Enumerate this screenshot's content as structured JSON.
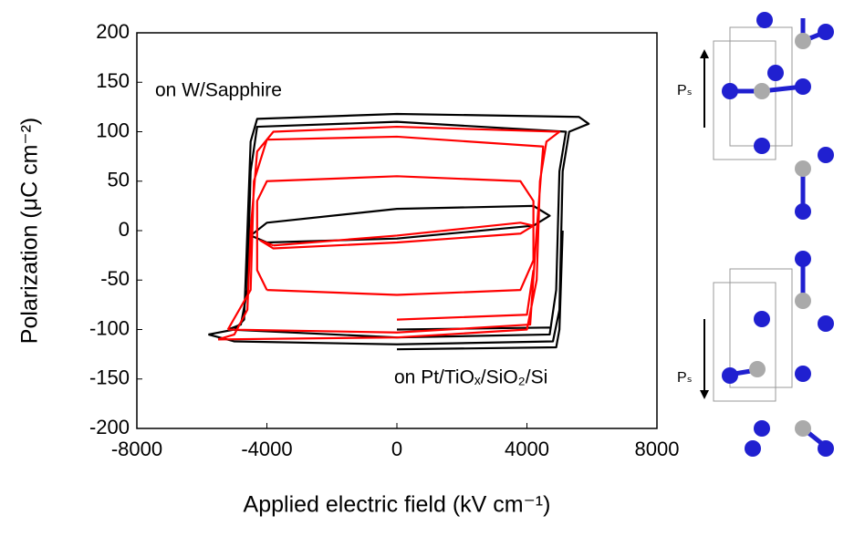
{
  "chart_data": {
    "type": "line",
    "xlabel": "Applied electric field (kV cm⁻¹)",
    "ylabel": "Polarization (μC cm⁻²)",
    "xlim": [
      -8000,
      8000
    ],
    "xticks": [
      -8000,
      -4000,
      0,
      4000,
      8000
    ],
    "ylim": [
      -200,
      200
    ],
    "yticks": [
      -200,
      -150,
      -100,
      -50,
      0,
      50,
      100,
      150,
      200
    ],
    "grid": false,
    "series": [
      {
        "name": "on Pt/TiOₓ/SiO₂/Si",
        "color": "#000000",
        "x": [
          -5800,
          -5000,
          0,
          4800,
          5000,
          5100,
          5300,
          5900,
          5600,
          0,
          -4300,
          -4500,
          -4600,
          -4700,
          -5000,
          -5800,
          null,
          -5200,
          0,
          4700,
          4900,
          5000,
          5200,
          0,
          -4300,
          -4500,
          -4600,
          -4800,
          -5200,
          null,
          -4000,
          0,
          4200,
          4700,
          4200,
          0,
          -4000,
          -4500,
          -4000,
          null,
          0,
          4900,
          5000,
          5100,
          null,
          0,
          4700
        ],
        "values": [
          -105,
          -112,
          -115,
          -112,
          -80,
          60,
          100,
          108,
          115,
          118,
          113,
          90,
          0,
          -90,
          -100,
          -105,
          null,
          -100,
          -108,
          -105,
          -60,
          60,
          100,
          110,
          105,
          60,
          -60,
          -95,
          -100,
          null,
          -12,
          -8,
          5,
          15,
          25,
          22,
          8,
          -5,
          -12,
          null,
          -120,
          -118,
          -100,
          0,
          null,
          -100,
          -98
        ]
      },
      {
        "name": "on W/Sapphire",
        "color": "#ff0000",
        "x": [
          -5500,
          0,
          4000,
          4300,
          4400,
          4600,
          5000,
          0,
          -3800,
          -4300,
          -4500,
          -4600,
          -5000,
          -5500,
          null,
          -5200,
          0,
          4100,
          4300,
          4500,
          0,
          -4000,
          -4400,
          -4500,
          -5200,
          null,
          -4000,
          -4300,
          -4300,
          -4000,
          0,
          3800,
          4200,
          4200,
          3800,
          0,
          -4000,
          null,
          -3800,
          0,
          3800,
          4200,
          3800,
          0,
          -3800,
          -4200,
          -3800,
          null,
          0,
          4000,
          4200
        ],
        "values": [
          -110,
          -108,
          -100,
          -50,
          50,
          90,
          100,
          105,
          100,
          80,
          0,
          -80,
          -105,
          -110,
          null,
          -100,
          -103,
          -95,
          0,
          85,
          95,
          92,
          50,
          -60,
          -100,
          null,
          -60,
          -40,
          30,
          50,
          55,
          50,
          30,
          -30,
          -60,
          -65,
          -60,
          null,
          -15,
          -5,
          8,
          5,
          -3,
          -12,
          -18,
          -10,
          -15,
          null,
          -90,
          -85,
          -40
        ]
      }
    ],
    "annotations": [
      "on W/Sapphire",
      "on Pt/TiOₓ/SiO₂/Si"
    ]
  },
  "structure_labels": [
    "Pₛ",
    "Pₛ"
  ]
}
